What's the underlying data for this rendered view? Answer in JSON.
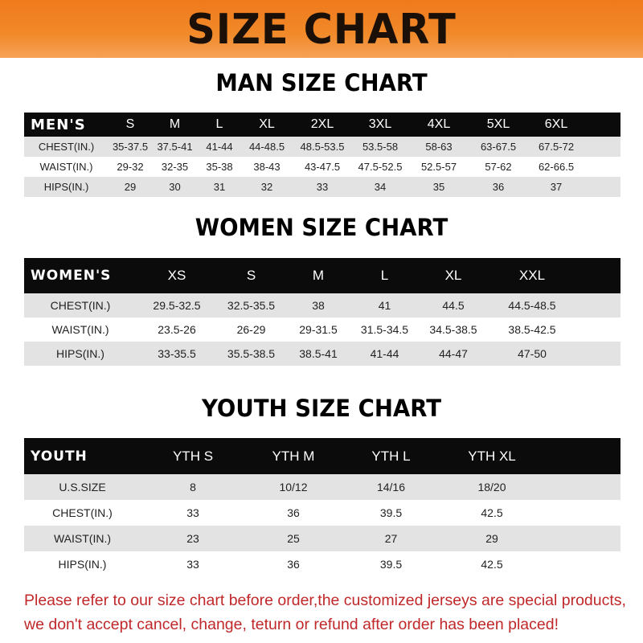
{
  "title": "SIZE CHART",
  "colors": {
    "banner": "#f18a2a",
    "header_row": "#0b0b0b",
    "shaded_row": "#e3e3e3",
    "notice_text": "#c0282a"
  },
  "men": {
    "title": "MAN SIZE CHART",
    "header": [
      "MEN'S",
      "S",
      "M",
      "L",
      "XL",
      "2XL",
      "3XL",
      "4XL",
      "5XL",
      "6XL"
    ],
    "rows": [
      [
        "CHEST(IN.)",
        "35-37.5",
        "37.5-41",
        "41-44",
        "44-48.5",
        "48.5-53.5",
        "53.5-58",
        "58-63",
        "63-67.5",
        "67.5-72"
      ],
      [
        "WAIST(IN.)",
        "29-32",
        "32-35",
        "35-38",
        "38-43",
        "43-47.5",
        "47.5-52.5",
        "52.5-57",
        "57-62",
        "62-66.5"
      ],
      [
        "HIPS(IN.)",
        "29",
        "30",
        "31",
        "32",
        "33",
        "34",
        "35",
        "36",
        "37"
      ]
    ]
  },
  "women": {
    "title": "WOMEN SIZE CHART",
    "header": [
      "WOMEN'S",
      "XS",
      "S",
      "M",
      "L",
      "XL",
      "XXL"
    ],
    "rows": [
      [
        "CHEST(IN.)",
        "29.5-32.5",
        "32.5-35.5",
        "38",
        "41",
        "44.5",
        "44.5-48.5"
      ],
      [
        "WAIST(IN.)",
        "23.5-26",
        "26-29",
        "29-31.5",
        "31.5-34.5",
        "34.5-38.5",
        "38.5-42.5"
      ],
      [
        "HIPS(IN.)",
        "33-35.5",
        "35.5-38.5",
        "38.5-41",
        "41-44",
        "44-47",
        "47-50"
      ]
    ]
  },
  "youth": {
    "title": "YOUTH SIZE CHART",
    "header": [
      "YOUTH",
      "YTH S",
      "YTH M",
      "YTH L",
      "YTH XL"
    ],
    "rows": [
      [
        "U.S.SIZE",
        "8",
        "10/12",
        "14/16",
        "18/20"
      ],
      [
        "CHEST(IN.)",
        "33",
        "36",
        "39.5",
        "42.5"
      ],
      [
        "WAIST(IN.)",
        "23",
        "25",
        "27",
        "29"
      ],
      [
        "HIPS(IN.)",
        "33",
        "36",
        "39.5",
        "42.5"
      ]
    ]
  },
  "notice": [
    "Please refer to our size chart before order,the customized jerseys are special products,",
    "we don't accept cancel, change, teturn or refund after order has been placed!"
  ]
}
